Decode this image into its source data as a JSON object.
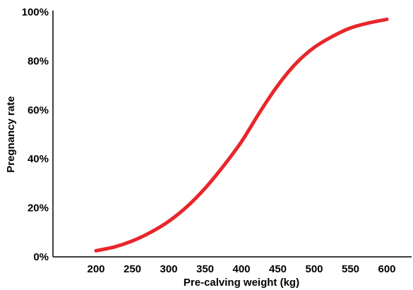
{
  "chart_data": {
    "type": "line",
    "xlabel": "Pre-calving weight (kg)",
    "ylabel": "Pregnancy rate",
    "xlim": [
      200,
      600
    ],
    "ylim": [
      0,
      100
    ],
    "x_ticks": [
      "200",
      "250",
      "300",
      "350",
      "400",
      "450",
      "500",
      "550",
      "600"
    ],
    "y_ticks": [
      "0%",
      "20%",
      "40%",
      "60%",
      "80%",
      "100%"
    ],
    "grid": false,
    "legend": "none",
    "series": [
      {
        "color": "#e8262b",
        "x": [
          200,
          225,
          250,
          275,
          300,
          325,
          350,
          375,
          400,
          425,
          450,
          475,
          500,
          525,
          550,
          575,
          600
        ],
        "y": [
          2.5,
          4,
          6.5,
          10,
          14.5,
          20.5,
          28,
          37,
          47,
          59,
          70,
          79,
          85.5,
          90,
          93.5,
          95.5,
          97
        ]
      }
    ]
  }
}
